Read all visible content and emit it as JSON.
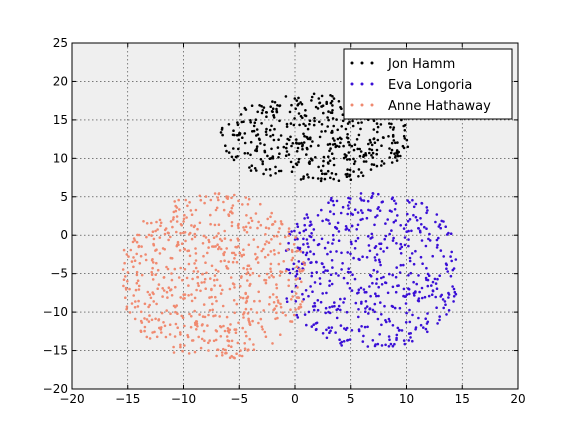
{
  "chart_data": {
    "type": "scatter",
    "title": "",
    "xlabel": "",
    "ylabel": "",
    "xlim": [
      -20,
      20
    ],
    "ylim": [
      -20,
      25
    ],
    "xticks": [
      -20,
      -15,
      -10,
      -5,
      0,
      5,
      10,
      15,
      20
    ],
    "yticks": [
      -20,
      -15,
      -10,
      -5,
      0,
      5,
      10,
      15,
      20,
      25
    ],
    "grid": true,
    "legend_position": "top-right",
    "series": [
      {
        "name": "Jon Hamm",
        "color": "#000000",
        "cluster": {
          "x_range": [
            -7,
            10.5
          ],
          "y_range": [
            7,
            18.5
          ],
          "center": [
            2,
            12.5
          ],
          "approx_points": 450
        }
      },
      {
        "name": "Eva Longoria",
        "color": "#3a0fd6",
        "cluster": {
          "x_range": [
            -1,
            14.5
          ],
          "y_range": [
            -14.5,
            5.5
          ],
          "center": [
            7,
            -4
          ],
          "approx_points": 550
        }
      },
      {
        "name": "Anne Hathaway",
        "color": "#f08a70",
        "cluster": {
          "x_range": [
            -15.5,
            1
          ],
          "y_range": [
            -16,
            5.5
          ],
          "center": [
            -7.5,
            -6
          ],
          "approx_points": 650
        }
      }
    ]
  }
}
